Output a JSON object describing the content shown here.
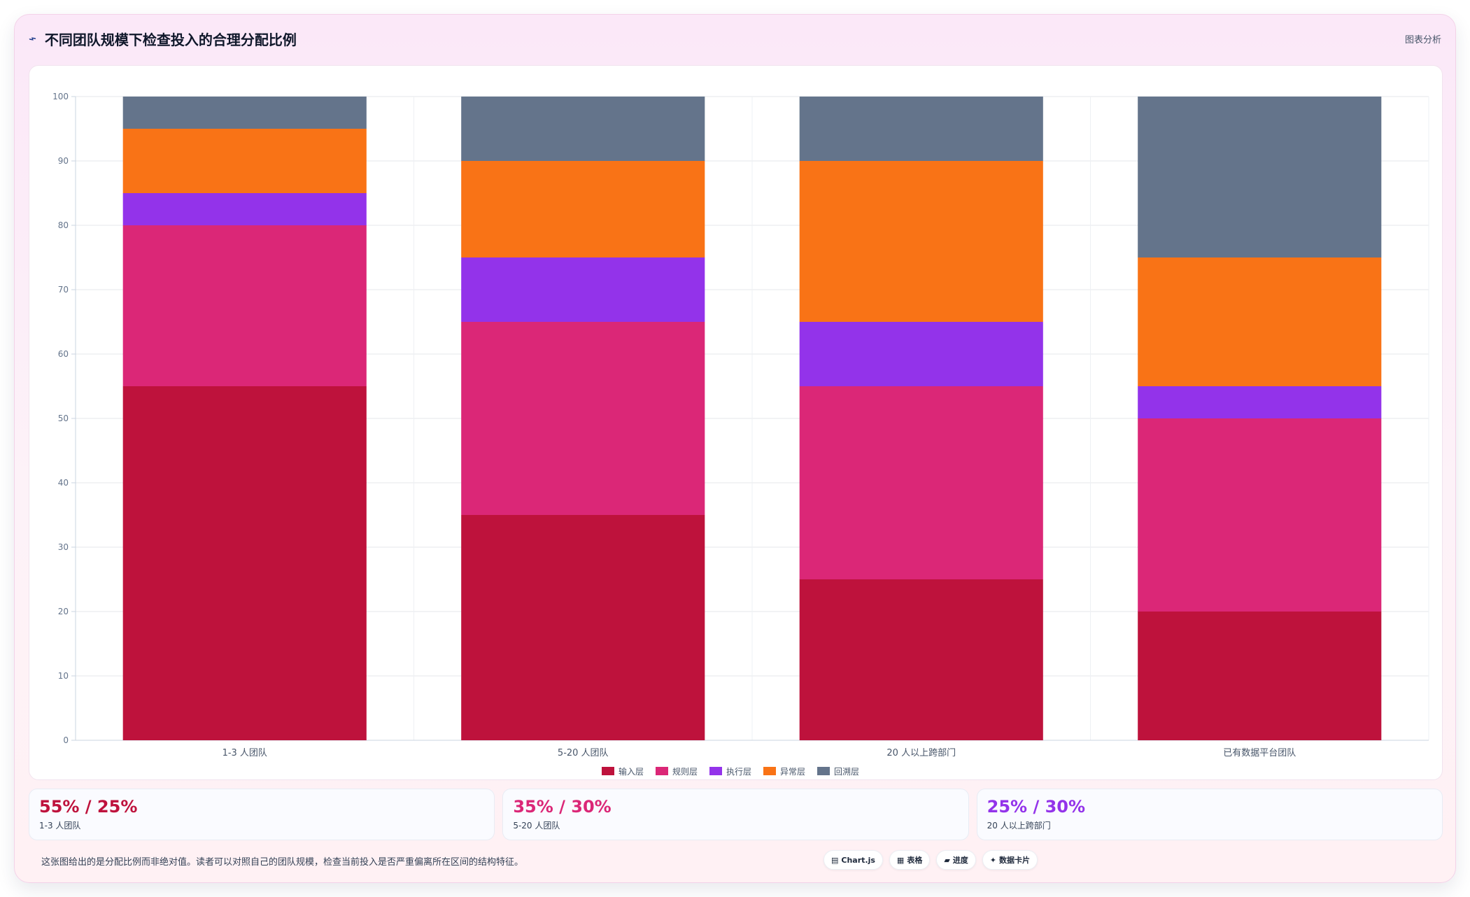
{
  "header": {
    "title": "不同团队规模下检查投入的合理分配比例",
    "title_icon": "trend-line-icon",
    "action_label": "图表分析"
  },
  "chart_data": {
    "type": "bar",
    "stacked": true,
    "categories": [
      "1-3 人团队",
      "5-20 人团队",
      "20 人以上跨部门",
      "已有数据平台团队"
    ],
    "series": [
      {
        "name": "输入层",
        "color": "#be123c",
        "values": [
          55,
          35,
          25,
          20
        ]
      },
      {
        "name": "规则层",
        "color": "#db2777",
        "values": [
          25,
          30,
          30,
          30
        ]
      },
      {
        "name": "执行层",
        "color": "#9333ea",
        "values": [
          5,
          10,
          10,
          5
        ]
      },
      {
        "name": "异常层",
        "color": "#f97316",
        "values": [
          10,
          15,
          25,
          20
        ]
      },
      {
        "name": "回溯层",
        "color": "#64748b",
        "values": [
          5,
          10,
          10,
          25
        ]
      }
    ],
    "ylim": [
      0,
      100
    ],
    "yticks": [
      "0",
      "10",
      "20",
      "30",
      "40",
      "50",
      "60",
      "70",
      "80",
      "90",
      "100"
    ],
    "grid": true,
    "legend_position": "bottom"
  },
  "stats": [
    {
      "value": "55% / 25%",
      "label": "1-3 人团队",
      "color": "#be123c"
    },
    {
      "value": "35% / 30%",
      "label": "5-20 人团队",
      "color": "#db2777"
    },
    {
      "value": "25% / 30%",
      "label": "20 人以上跨部门",
      "color": "#9333ea"
    }
  ],
  "footer": {
    "note": "这张图给出的是分配比例而非绝对值。读者可以对照自己的团队规模，检查当前投入是否严重偏离所在区间的结构特征。",
    "chips": [
      {
        "icon": "▤",
        "label": "Chart.js"
      },
      {
        "icon": "▦",
        "label": "表格"
      },
      {
        "icon": "▰",
        "label": "进度"
      },
      {
        "icon": "✦",
        "label": "数据卡片"
      }
    ]
  }
}
